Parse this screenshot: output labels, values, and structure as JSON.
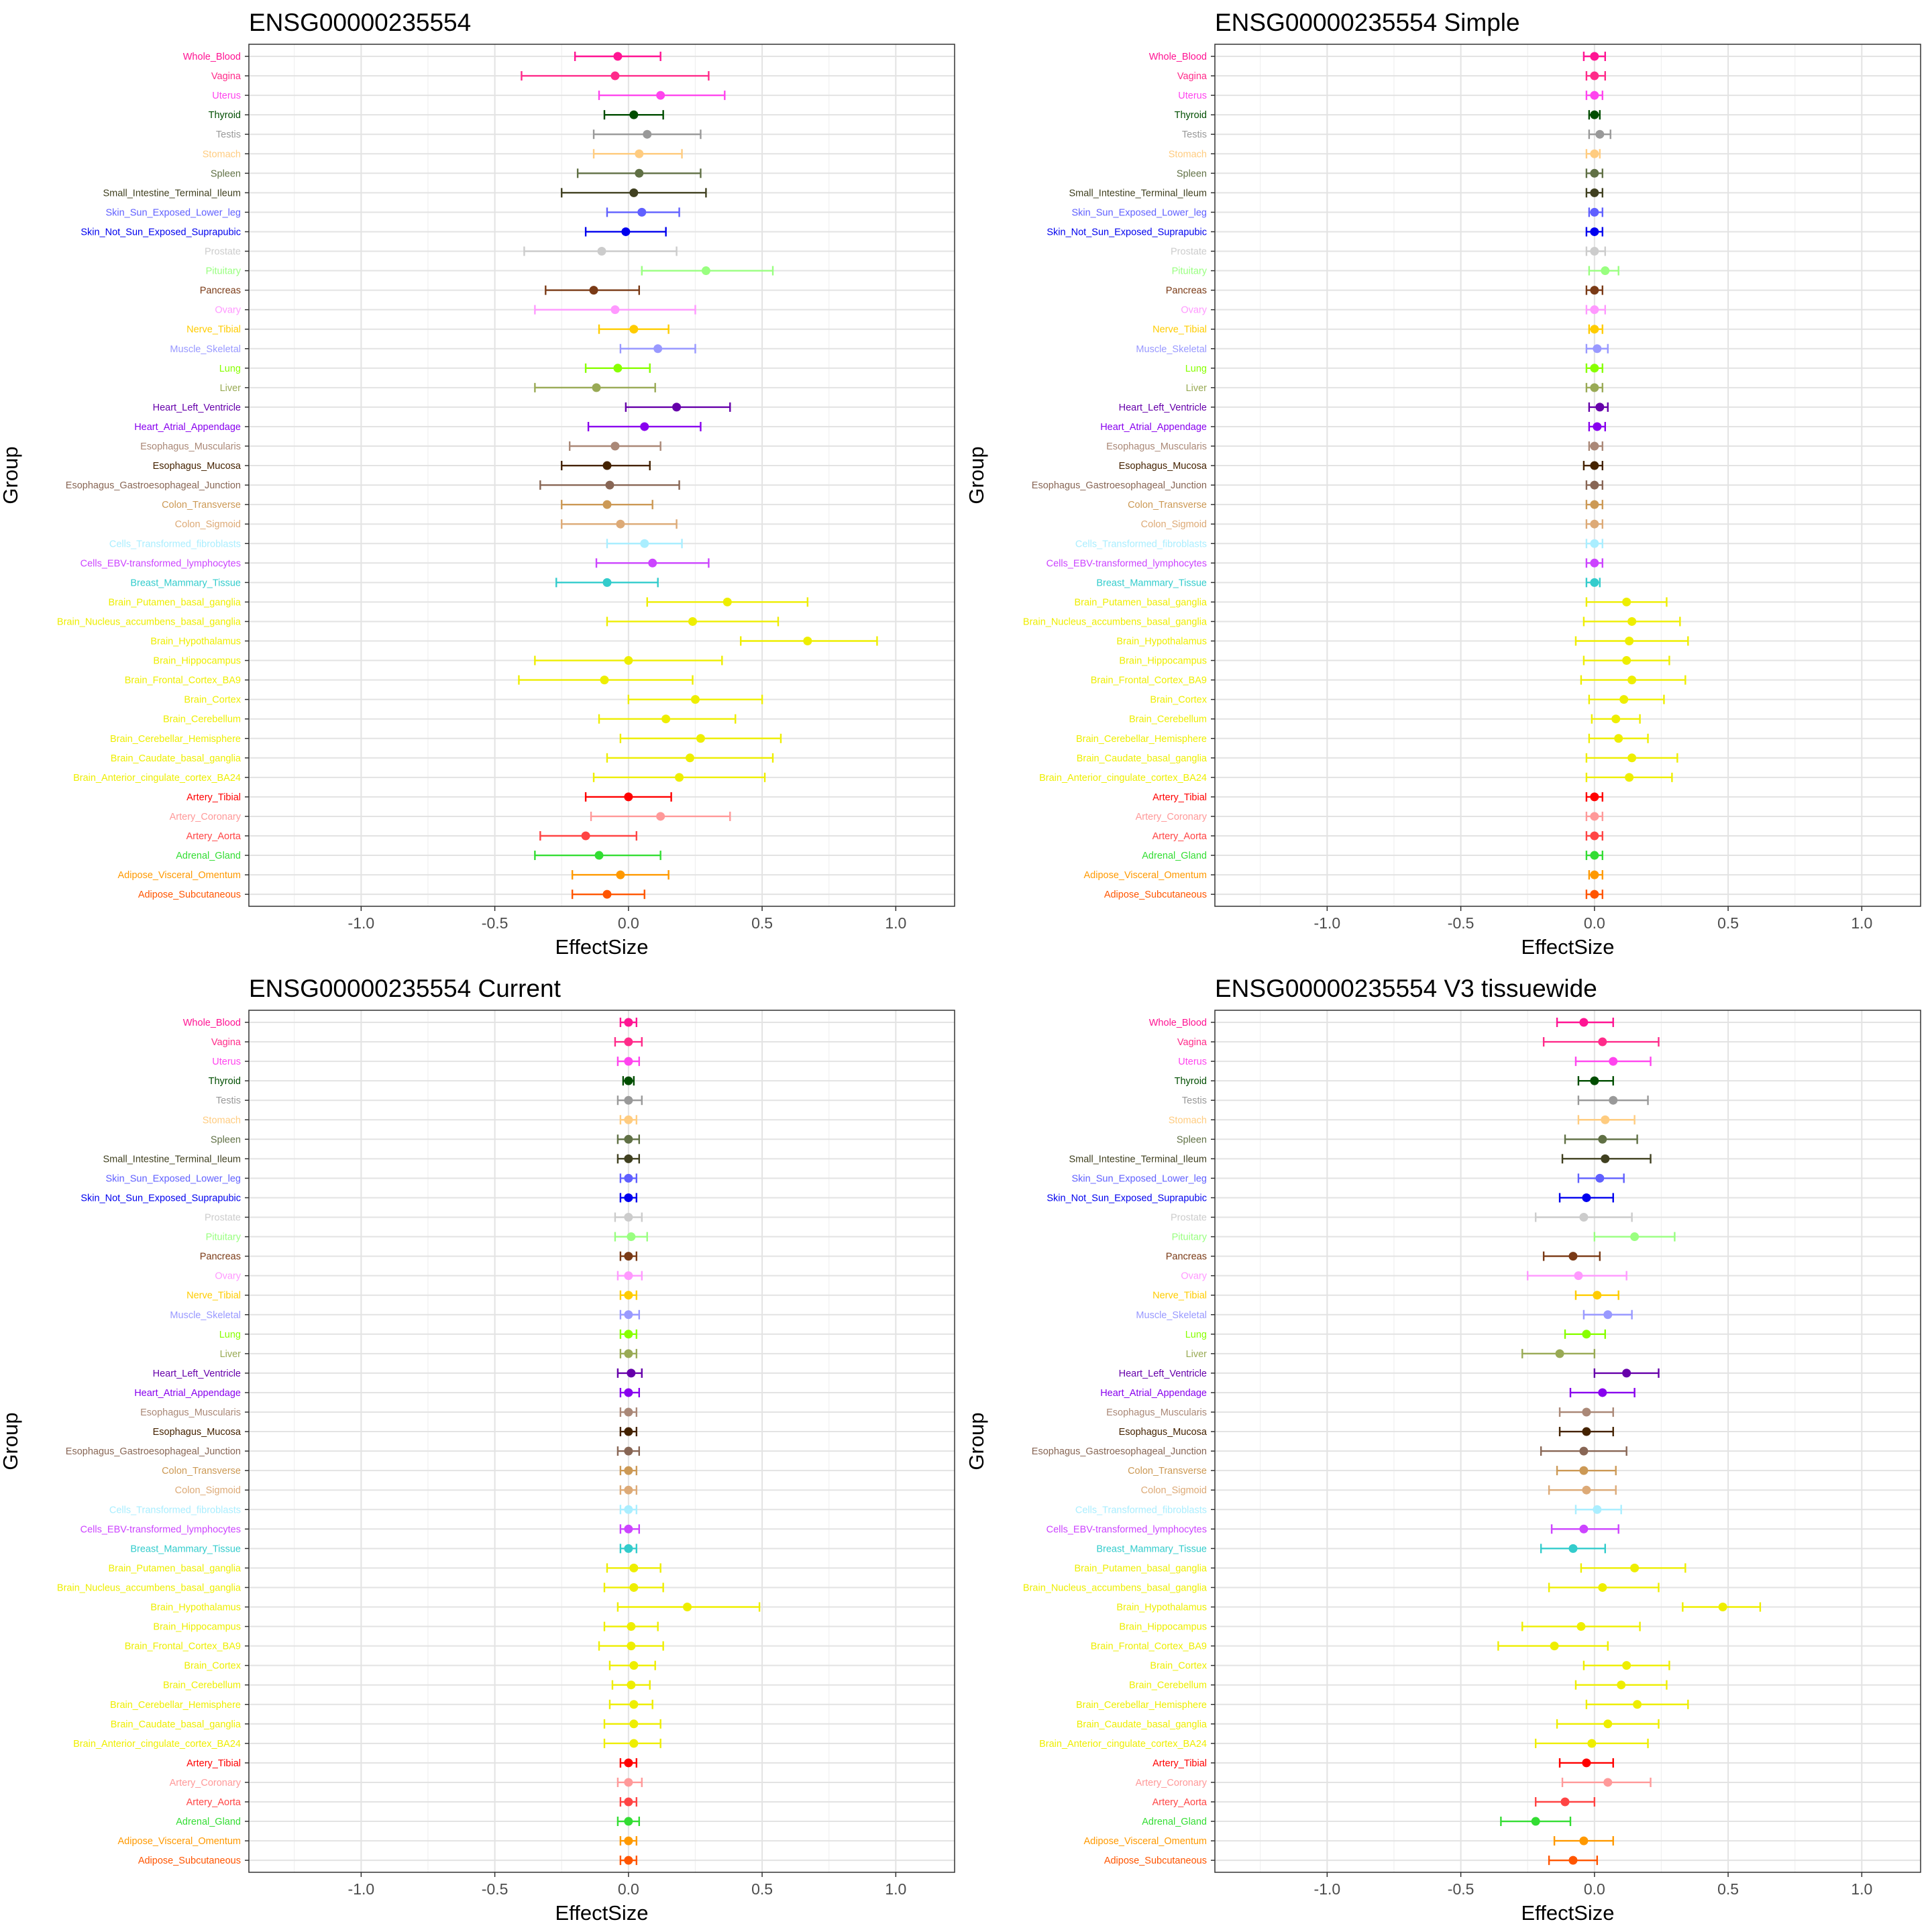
{
  "chart_data": [
    {
      "type": "errorbar",
      "title": "ENSG00000235554",
      "xlabel": "EffectSize",
      "ylabel": "Group",
      "xlim": [
        -1.42,
        1.22
      ],
      "xticks": [
        "-1.0",
        "-0.5",
        "0.0",
        "0.5",
        "1.0"
      ],
      "grid": true,
      "legend": "none",
      "groups": [
        "Whole_Blood",
        "Vagina",
        "Uterus",
        "Thyroid",
        "Testis",
        "Stomach",
        "Spleen",
        "Small_Intestine_Terminal_Ileum",
        "Skin_Sun_Exposed_Lower_leg",
        "Skin_Not_Sun_Exposed_Suprapubic",
        "Prostate",
        "Pituitary",
        "Pancreas",
        "Ovary",
        "Nerve_Tibial",
        "Muscle_Skeletal",
        "Lung",
        "Liver",
        "Heart_Left_Ventricle",
        "Heart_Atrial_Appendage",
        "Esophagus_Muscularis",
        "Esophagus_Mucosa",
        "Esophagus_Gastroesophageal_Junction",
        "Colon_Transverse",
        "Colon_Sigmoid",
        "Cells_Transformed_fibroblasts",
        "Cells_EBV-transformed_lymphocytes",
        "Breast_Mammary_Tissue",
        "Brain_Putamen_basal_ganglia",
        "Brain_Nucleus_accumbens_basal_ganglia",
        "Brain_Hypothalamus",
        "Brain_Hippocampus",
        "Brain_Frontal_Cortex_BA9",
        "Brain_Cortex",
        "Brain_Cerebellum",
        "Brain_Cerebellar_Hemisphere",
        "Brain_Caudate_basal_ganglia",
        "Brain_Anterior_cingulate_cortex_BA24",
        "Artery_Tibial",
        "Artery_Coronary",
        "Artery_Aorta",
        "Adrenal_Gland",
        "Adipose_Visceral_Omentum",
        "Adipose_Subcutaneous"
      ],
      "colors": [
        "#ff1493",
        "#ff2b8a",
        "#ff44ee",
        "#004d00",
        "#999999",
        "#ffcc80",
        "#607045",
        "#404020",
        "#6060ff",
        "#0000ee",
        "#cccccc",
        "#99ff80",
        "#7a3a16",
        "#ff99ff",
        "#ffcc00",
        "#9999ff",
        "#88ff00",
        "#99aa55",
        "#6600aa",
        "#8800ee",
        "#aa8877",
        "#442200",
        "#886655",
        "#cc9955",
        "#ddaa77",
        "#aaeeff",
        "#cc44ff",
        "#33cccc",
        "#eeee00",
        "#eeee00",
        "#eeee00",
        "#eeee00",
        "#eeee00",
        "#eeee00",
        "#eeee00",
        "#eeee00",
        "#eeee00",
        "#eeee00",
        "#ff0000",
        "#ff9999",
        "#ff4444",
        "#33dd33",
        "#ff9900",
        "#ff5500"
      ],
      "values": [
        -0.04,
        -0.05,
        0.12,
        0.02,
        0.07,
        0.04,
        0.04,
        0.02,
        0.05,
        -0.01,
        -0.1,
        0.29,
        -0.13,
        -0.05,
        0.02,
        0.11,
        -0.04,
        -0.12,
        0.18,
        0.06,
        -0.05,
        -0.08,
        -0.07,
        -0.08,
        -0.03,
        0.06,
        0.09,
        -0.08,
        0.37,
        0.24,
        0.67,
        0.0,
        -0.09,
        0.25,
        0.14,
        0.27,
        0.23,
        0.19,
        0.0,
        0.12,
        -0.16,
        -0.11,
        -0.03,
        -0.08
      ],
      "lower": [
        -0.2,
        -0.4,
        -0.11,
        -0.09,
        -0.13,
        -0.13,
        -0.19,
        -0.25,
        -0.08,
        -0.16,
        -0.39,
        0.05,
        -0.31,
        -0.35,
        -0.11,
        -0.03,
        -0.16,
        -0.35,
        -0.01,
        -0.15,
        -0.22,
        -0.25,
        -0.33,
        -0.25,
        -0.25,
        -0.08,
        -0.12,
        -0.27,
        0.07,
        -0.08,
        0.42,
        -0.35,
        -0.41,
        0.0,
        -0.11,
        -0.03,
        -0.08,
        -0.13,
        -0.16,
        -0.14,
        -0.33,
        -0.35,
        -0.21,
        -0.21
      ],
      "upper": [
        0.12,
        0.3,
        0.36,
        0.13,
        0.27,
        0.2,
        0.27,
        0.29,
        0.19,
        0.14,
        0.18,
        0.54,
        0.04,
        0.25,
        0.15,
        0.25,
        0.08,
        0.1,
        0.38,
        0.27,
        0.12,
        0.08,
        0.19,
        0.09,
        0.18,
        0.2,
        0.3,
        0.11,
        0.67,
        0.56,
        0.93,
        0.35,
        0.24,
        0.5,
        0.4,
        0.57,
        0.54,
        0.51,
        0.16,
        0.38,
        0.03,
        0.12,
        0.15,
        0.06
      ]
    },
    {
      "type": "errorbar",
      "title": "ENSG00000235554 Simple",
      "xlabel": "EffectSize",
      "ylabel": "Group",
      "xlim": [
        -1.42,
        1.22
      ],
      "xticks": [
        "-1.0",
        "-0.5",
        "0.0",
        "0.5",
        "1.0"
      ],
      "grid": true,
      "legend": "none",
      "values": [
        0.0,
        0.0,
        0.0,
        0.0,
        0.02,
        0.0,
        0.0,
        0.0,
        0.0,
        0.0,
        0.0,
        0.04,
        0.0,
        0.0,
        0.0,
        0.01,
        0.0,
        0.0,
        0.02,
        0.01,
        0.0,
        0.0,
        0.0,
        0.0,
        0.0,
        0.0,
        0.0,
        0.0,
        0.12,
        0.14,
        0.13,
        0.12,
        0.14,
        0.11,
        0.08,
        0.09,
        0.14,
        0.13,
        0.0,
        0.0,
        0.0,
        0.0,
        0.0,
        0.0
      ],
      "lower": [
        -0.04,
        -0.03,
        -0.03,
        -0.02,
        -0.02,
        -0.03,
        -0.03,
        -0.03,
        -0.02,
        -0.03,
        -0.03,
        -0.02,
        -0.03,
        -0.03,
        -0.02,
        -0.03,
        -0.03,
        -0.03,
        -0.02,
        -0.02,
        -0.02,
        -0.04,
        -0.03,
        -0.03,
        -0.03,
        -0.03,
        -0.03,
        -0.03,
        -0.03,
        -0.04,
        -0.07,
        -0.04,
        -0.05,
        -0.02,
        -0.01,
        -0.02,
        -0.03,
        -0.03,
        -0.03,
        -0.03,
        -0.03,
        -0.03,
        -0.02,
        -0.03
      ],
      "upper": [
        0.04,
        0.04,
        0.03,
        0.02,
        0.06,
        0.02,
        0.03,
        0.03,
        0.03,
        0.03,
        0.04,
        0.09,
        0.03,
        0.04,
        0.03,
        0.05,
        0.03,
        0.03,
        0.05,
        0.04,
        0.03,
        0.03,
        0.03,
        0.03,
        0.03,
        0.03,
        0.03,
        0.02,
        0.27,
        0.32,
        0.35,
        0.28,
        0.34,
        0.26,
        0.17,
        0.2,
        0.31,
        0.29,
        0.03,
        0.03,
        0.03,
        0.03,
        0.03,
        0.03
      ]
    },
    {
      "type": "errorbar",
      "title": "ENSG00000235554 Current",
      "xlabel": "EffectSize",
      "ylabel": "Group",
      "xlim": [
        -1.42,
        1.22
      ],
      "xticks": [
        "-1.0",
        "-0.5",
        "0.0",
        "0.5",
        "1.0"
      ],
      "grid": true,
      "legend": "none",
      "values": [
        0.0,
        0.0,
        0.0,
        0.0,
        0.0,
        0.0,
        0.0,
        0.0,
        0.0,
        0.0,
        0.0,
        0.01,
        0.0,
        0.0,
        0.0,
        0.0,
        0.0,
        0.0,
        0.01,
        0.0,
        0.0,
        0.0,
        0.0,
        0.0,
        0.0,
        0.0,
        0.0,
        0.0,
        0.02,
        0.02,
        0.22,
        0.01,
        0.01,
        0.02,
        0.01,
        0.02,
        0.02,
        0.02,
        0.0,
        0.0,
        0.0,
        0.0,
        0.0,
        0.0
      ],
      "lower": [
        -0.03,
        -0.05,
        -0.04,
        -0.02,
        -0.04,
        -0.03,
        -0.04,
        -0.04,
        -0.03,
        -0.03,
        -0.05,
        -0.05,
        -0.03,
        -0.04,
        -0.03,
        -0.03,
        -0.03,
        -0.03,
        -0.04,
        -0.03,
        -0.03,
        -0.03,
        -0.04,
        -0.03,
        -0.03,
        -0.03,
        -0.03,
        -0.03,
        -0.08,
        -0.09,
        -0.04,
        -0.09,
        -0.11,
        -0.07,
        -0.06,
        -0.07,
        -0.09,
        -0.09,
        -0.03,
        -0.04,
        -0.03,
        -0.04,
        -0.03,
        -0.03
      ],
      "upper": [
        0.03,
        0.05,
        0.04,
        0.02,
        0.05,
        0.03,
        0.04,
        0.04,
        0.03,
        0.03,
        0.05,
        0.07,
        0.03,
        0.05,
        0.03,
        0.04,
        0.03,
        0.03,
        0.05,
        0.04,
        0.03,
        0.03,
        0.04,
        0.03,
        0.03,
        0.03,
        0.04,
        0.03,
        0.12,
        0.13,
        0.49,
        0.11,
        0.13,
        0.1,
        0.08,
        0.09,
        0.12,
        0.12,
        0.03,
        0.05,
        0.03,
        0.04,
        0.03,
        0.03
      ]
    },
    {
      "type": "errorbar",
      "title": "ENSG00000235554 V3 tissuewide",
      "xlabel": "EffectSize",
      "ylabel": "Group",
      "xlim": [
        -1.42,
        1.22
      ],
      "xticks": [
        "-1.0",
        "-0.5",
        "0.0",
        "0.5",
        "1.0"
      ],
      "grid": true,
      "legend": "none",
      "values": [
        -0.04,
        0.03,
        0.07,
        0.0,
        0.07,
        0.04,
        0.03,
        0.04,
        0.02,
        -0.03,
        -0.04,
        0.15,
        -0.08,
        -0.06,
        0.01,
        0.05,
        -0.03,
        -0.13,
        0.12,
        0.03,
        -0.03,
        -0.03,
        -0.04,
        -0.04,
        -0.03,
        0.01,
        -0.04,
        -0.08,
        0.15,
        0.03,
        0.48,
        -0.05,
        -0.15,
        0.12,
        0.1,
        0.16,
        0.05,
        -0.01,
        -0.03,
        0.05,
        -0.11,
        -0.22,
        -0.04,
        -0.08
      ],
      "lower": [
        -0.14,
        -0.19,
        -0.07,
        -0.06,
        -0.06,
        -0.06,
        -0.11,
        -0.12,
        -0.06,
        -0.13,
        -0.22,
        0.0,
        -0.19,
        -0.25,
        -0.07,
        -0.04,
        -0.11,
        -0.27,
        0.0,
        -0.09,
        -0.13,
        -0.13,
        -0.2,
        -0.14,
        -0.17,
        -0.07,
        -0.16,
        -0.2,
        -0.05,
        -0.17,
        0.33,
        -0.27,
        -0.36,
        -0.04,
        -0.07,
        -0.03,
        -0.14,
        -0.22,
        -0.13,
        -0.12,
        -0.22,
        -0.35,
        -0.15,
        -0.17
      ],
      "upper": [
        0.07,
        0.24,
        0.21,
        0.07,
        0.2,
        0.15,
        0.16,
        0.21,
        0.11,
        0.07,
        0.14,
        0.3,
        0.02,
        0.12,
        0.09,
        0.14,
        0.04,
        0.0,
        0.24,
        0.15,
        0.07,
        0.07,
        0.12,
        0.08,
        0.08,
        0.1,
        0.09,
        0.04,
        0.34,
        0.24,
        0.62,
        0.17,
        0.05,
        0.28,
        0.27,
        0.35,
        0.24,
        0.2,
        0.07,
        0.21,
        0.0,
        -0.09,
        0.07,
        0.01
      ]
    }
  ]
}
